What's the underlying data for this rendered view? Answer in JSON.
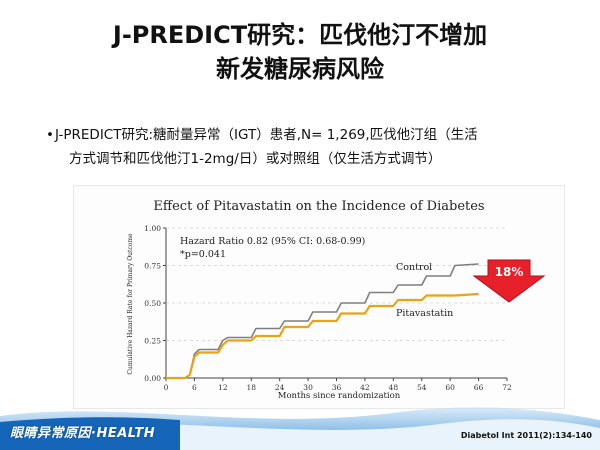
{
  "slide": {
    "title_line1": "J-PREDICT研究：匹伐他汀不增加",
    "title_line2": "新发糖尿病风险",
    "bullet_marker": "•",
    "bullet_line1": "J-PREDICT研究:糖耐量异常（IGT）患者,N= 1,269,匹伐他汀组（生活",
    "bullet_line2": "方式调节和匹伐他汀1-2mg/日）或对照组（仅生活方式调节）",
    "citation": "Diabetol Int  2011(2):134-140",
    "logo_text": "眼睛异常原因·HEALTH",
    "colors": {
      "control": "#7f7f7f",
      "pitavastatin": "#e8a317",
      "arrow": "#e8202a",
      "footer": "#1565b8"
    }
  },
  "chart_data": {
    "type": "line",
    "title": "Effect of Pitavastatin on the Incidence of Diabetes",
    "xlabel": "Months since randomization",
    "ylabel": "Cumulative Hazard Rate for Primary Outcome",
    "xlim": [
      0,
      72
    ],
    "ylim": [
      0,
      1.0
    ],
    "xticks": [
      "0",
      "6",
      "12",
      "18",
      "24",
      "30",
      "36",
      "42",
      "48",
      "54",
      "60",
      "66",
      "72"
    ],
    "yticks": [
      "0.00",
      "0.25",
      "0.50",
      "0.75",
      "1.00"
    ],
    "annotation_line1": "Hazard Ratio 0.82 (95% CI: 0.68-0.99)",
    "annotation_line2": "*p=0.041",
    "callout": "18%",
    "series": [
      {
        "name": "Control",
        "color": "#7f7f7f",
        "x": [
          0,
          4,
          5,
          6,
          7,
          11,
          12,
          13,
          18,
          19,
          24,
          25,
          30,
          31,
          36,
          37,
          42,
          43,
          48,
          49,
          54,
          55,
          60,
          61,
          66
        ],
        "y": [
          0,
          0,
          0.02,
          0.16,
          0.19,
          0.19,
          0.25,
          0.27,
          0.27,
          0.33,
          0.33,
          0.38,
          0.38,
          0.44,
          0.44,
          0.5,
          0.5,
          0.57,
          0.57,
          0.62,
          0.62,
          0.68,
          0.68,
          0.75,
          0.76
        ]
      },
      {
        "name": "Pitavastatin",
        "color": "#e8a317",
        "x": [
          0,
          4,
          5,
          6,
          7,
          11,
          12,
          13,
          18,
          19,
          24,
          25,
          30,
          31,
          36,
          37,
          42,
          43,
          48,
          49,
          54,
          55,
          60,
          61,
          66
        ],
        "y": [
          0,
          0,
          0.02,
          0.14,
          0.17,
          0.17,
          0.22,
          0.25,
          0.25,
          0.28,
          0.28,
          0.34,
          0.34,
          0.38,
          0.38,
          0.43,
          0.43,
          0.48,
          0.48,
          0.52,
          0.52,
          0.55,
          0.55,
          0.55,
          0.56
        ]
      }
    ]
  }
}
